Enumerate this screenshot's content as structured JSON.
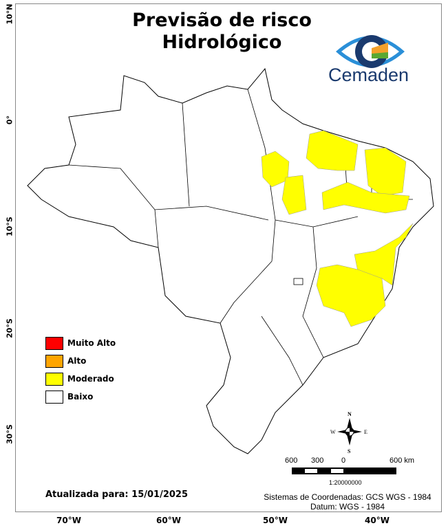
{
  "title": {
    "line1": "Previsão de risco",
    "line2": "Hidrológico"
  },
  "logo": {
    "text": "Cemaden",
    "colors": {
      "dark": "#1a3a6e",
      "light": "#2a8fd8",
      "orange": "#f4a12a",
      "green": "#5aa832"
    }
  },
  "axes": {
    "lat_labels": [
      "10°N",
      "0°",
      "10°S",
      "20°S",
      "30°S"
    ],
    "lon_labels": [
      "70°W",
      "60°W",
      "50°W",
      "40°W"
    ]
  },
  "legend": {
    "items": [
      {
        "label": "Muito Alto",
        "color": "#ff0000"
      },
      {
        "label": "Alto",
        "color": "#ffa500"
      },
      {
        "label": "Moderado",
        "color": "#ffff00"
      },
      {
        "label": "Baixo",
        "color": "#ffffff"
      }
    ]
  },
  "compass": {
    "n": "N",
    "s": "S",
    "e": "E",
    "w": "W"
  },
  "scale": {
    "labels": [
      "600",
      "300",
      "0",
      "600 km"
    ],
    "ratio": "1:20000000"
  },
  "updated": "Atualizada para: 15/01/2025",
  "coords": {
    "line1": "Sistemas de Coordenadas: GCS WGS - 1984",
    "line2": "Datum: WGS - 1984"
  }
}
